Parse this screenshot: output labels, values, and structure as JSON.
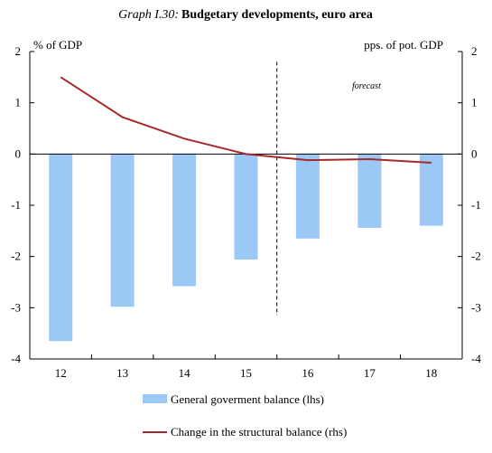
{
  "chart_data": {
    "type": "bar",
    "title_prefix": "Graph I.30:",
    "title_main": "Budgetary developments, euro area",
    "left_unit": "% of GDP",
    "right_unit": "pps. of pot. GDP",
    "annotation": "forecast",
    "categories": [
      "12",
      "13",
      "14",
      "15",
      "16",
      "17",
      "18"
    ],
    "ylim_left": [
      -4,
      2
    ],
    "ylim_right": [
      -4,
      2
    ],
    "yticks": [
      "2",
      "1",
      "0",
      "-1",
      "-2",
      "-3",
      "-4"
    ],
    "forecast_divider_after_category": "15",
    "series": [
      {
        "name": "General goverment balance (lhs)",
        "kind": "bar",
        "axis": "left",
        "color": "#9cc8f5",
        "values": [
          -3.65,
          -2.98,
          -2.58,
          -2.06,
          -1.65,
          -1.44,
          -1.4
        ]
      },
      {
        "name": "Change in the structural balance (rhs)",
        "kind": "line",
        "axis": "right",
        "color": "#a52a2a",
        "values": [
          1.5,
          0.72,
          0.3,
          0.0,
          -0.12,
          -0.1,
          -0.17
        ]
      }
    ]
  }
}
